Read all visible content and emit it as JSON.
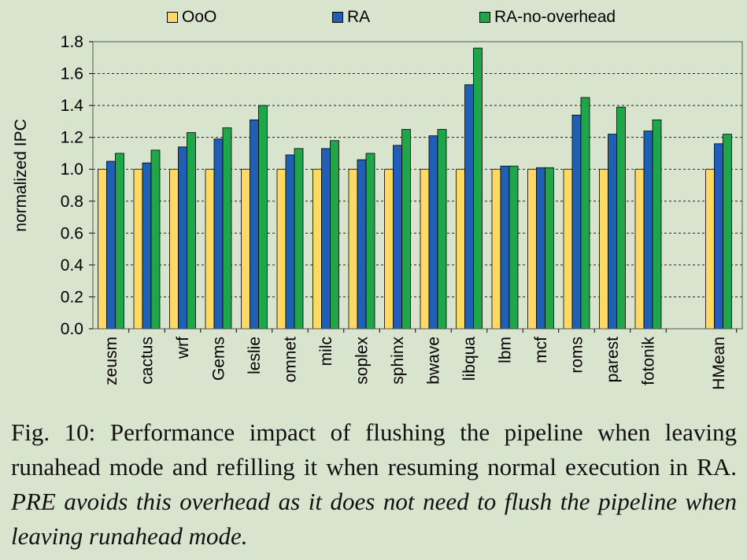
{
  "chart_data": {
    "type": "bar",
    "title": "",
    "xlabel": "",
    "ylabel": "normalized IPC",
    "ylim": [
      0,
      1.8
    ],
    "yticks": [
      "0.0",
      "0.2",
      "0.4",
      "0.6",
      "0.8",
      "1.0",
      "1.2",
      "1.4",
      "1.6",
      "1.8"
    ],
    "grid": "horizontal dashed",
    "legend_position": "top",
    "categories": [
      "zeusm",
      "cactus",
      "wrf",
      "Gems",
      "leslie",
      "omnet",
      "milc",
      "soplex",
      "sphinx",
      "bwave",
      "libqua",
      "lbm",
      "mcf",
      "roms",
      "parest",
      "fotonik",
      "HMean"
    ],
    "series": [
      {
        "name": "OoO",
        "color": "#ffd966",
        "values": [
          1.0,
          1.0,
          1.0,
          1.0,
          1.0,
          1.0,
          1.0,
          1.0,
          1.0,
          1.0,
          1.0,
          1.0,
          1.0,
          1.0,
          1.0,
          1.0,
          1.0
        ]
      },
      {
        "name": "RA",
        "color": "#1f5fb4",
        "values": [
          1.05,
          1.04,
          1.14,
          1.19,
          1.31,
          1.09,
          1.13,
          1.06,
          1.15,
          1.21,
          1.53,
          1.02,
          1.01,
          1.34,
          1.22,
          1.24,
          1.16
        ]
      },
      {
        "name": "RA-no-overhead",
        "color": "#1fa64b",
        "values": [
          1.1,
          1.12,
          1.23,
          1.26,
          1.4,
          1.13,
          1.18,
          1.1,
          1.25,
          1.25,
          1.76,
          1.02,
          1.01,
          1.45,
          1.39,
          1.31,
          1.22
        ]
      }
    ]
  },
  "caption": {
    "prefix": "Fig. 10: Performance impact of flushing the pipeline when leaving runahead mode and refilling it when resuming normal execution in RA. ",
    "italic": "PRE avoids this overhead as it does not need to flush the pipeline when leaving runahead mode."
  }
}
